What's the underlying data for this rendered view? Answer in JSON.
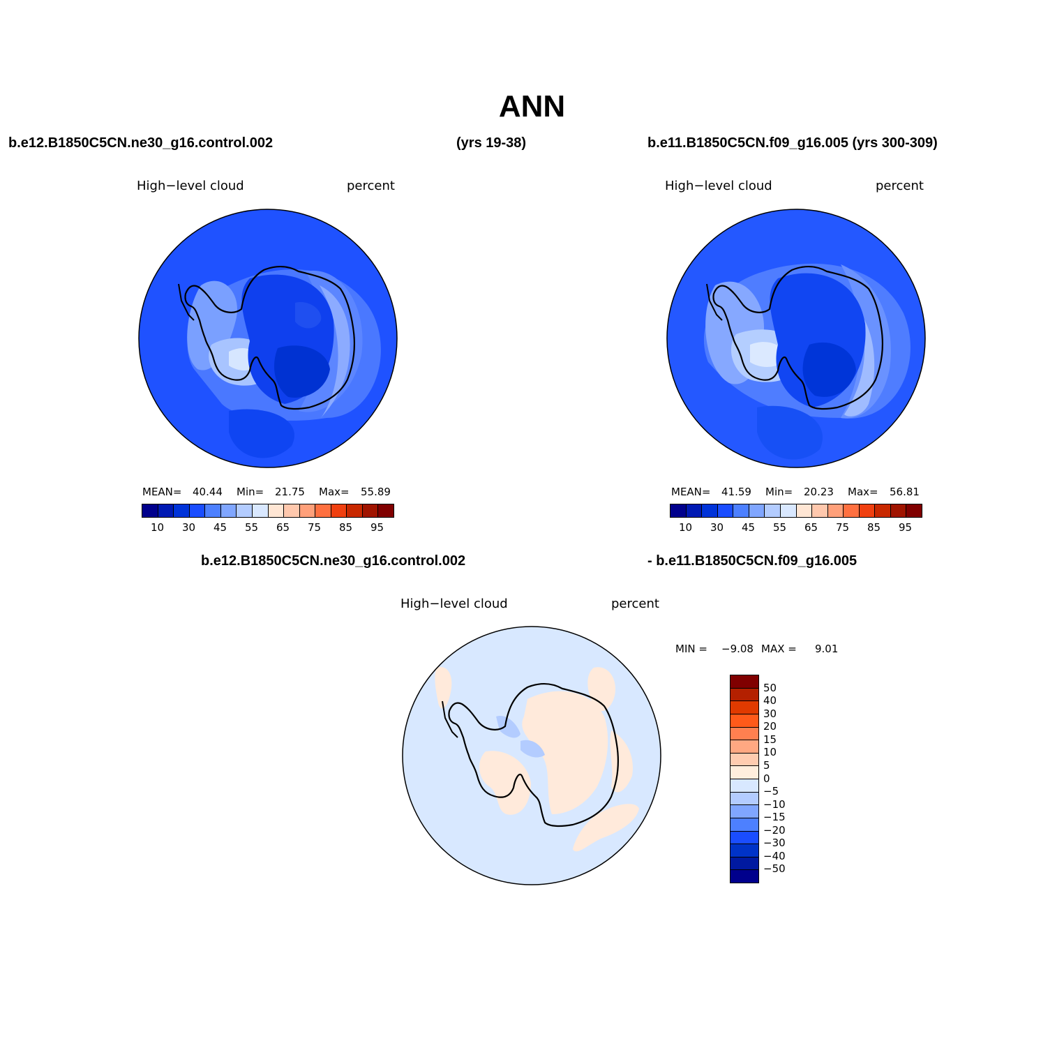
{
  "page": {
    "title": "ANN"
  },
  "panels": [
    {
      "case_label": "b.e12.B1850C5CN.ne30_g16.control.002",
      "years_label": "(yrs 19-38)",
      "variable": "High−level cloud",
      "units": "percent",
      "stats": {
        "mean_label": "MEAN=",
        "mean": "40.44",
        "min_label": "Min=",
        "min": "21.75",
        "max_label": "Max=",
        "max": "55.89"
      }
    },
    {
      "case_label": "b.e11.B1850C5CN.f09_g16.005 (yrs 300-309)",
      "variable": "High−level cloud",
      "units": "percent",
      "stats": {
        "mean_label": "MEAN=",
        "mean": "41.59",
        "min_label": "Min=",
        "min": "20.23",
        "max_label": "Max=",
        "max": "56.81"
      }
    }
  ],
  "diff_panel": {
    "case_a": "b.e12.B1850C5CN.ne30_g16.control.002",
    "case_b": "- b.e11.B1850C5CN.f09_g16.005",
    "variable": "High−level cloud",
    "units": "percent",
    "min_label": "MIN =",
    "min": "−9.08",
    "max_label": "MAX =",
    "max": "9.01"
  },
  "field_colorbar": {
    "colors": [
      "#00008c",
      "#0019b3",
      "#0033d9",
      "#1a4dff",
      "#4d80ff",
      "#80a6ff",
      "#b3ccff",
      "#d9e8ff",
      "#ffe6d4",
      "#ffc8ad",
      "#ffa07a",
      "#ff7040",
      "#f04010",
      "#c82800",
      "#a01400",
      "#800000"
    ],
    "tick_labels": [
      "10",
      "30",
      "45",
      "55",
      "65",
      "75",
      "85",
      "95"
    ]
  },
  "diff_colorbar": {
    "colors": [
      "#800000",
      "#b42000",
      "#e03a00",
      "#ff5a1a",
      "#ff8050",
      "#ffa882",
      "#ffccb0",
      "#ffeedd",
      "#d8e8ff",
      "#b3ccff",
      "#80a6ff",
      "#4d80ff",
      "#1a4dff",
      "#0033c8",
      "#0019a0",
      "#00008c"
    ],
    "tick_labels": [
      "50",
      "40",
      "30",
      "20",
      "15",
      "10",
      "5",
      "0",
      "−5",
      "−10",
      "−15",
      "−20",
      "−30",
      "−40",
      "−50"
    ]
  }
}
